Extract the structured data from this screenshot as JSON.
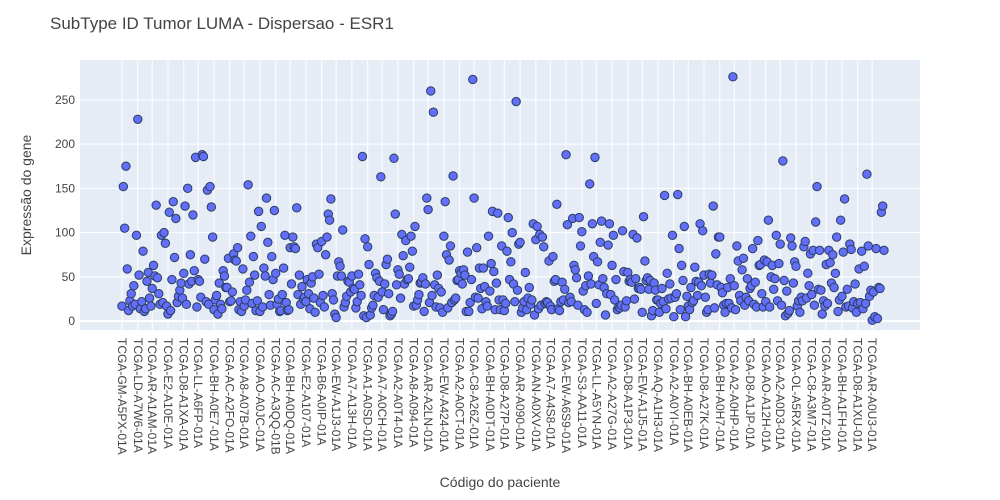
{
  "chart_data": {
    "type": "scatter",
    "title": "SubType ID Tumor LUMA - Dispersao - ESR1",
    "xlabel": "Código do paciente",
    "ylabel": "Expressão do gene",
    "ylim": [
      -10,
      295
    ],
    "yticks": [
      0,
      50,
      100,
      150,
      200,
      250
    ],
    "grid": true,
    "marker_color": "#636efa",
    "marker_edge_color": "#2a3f5f",
    "plot_bg": "#e5ecf6",
    "xtick_labels": [
      "TCGA-GM-A5PX-01A",
      "TCGA-LD-A7W6-01A",
      "TCGA-AR-A1AM-01A",
      "TCGA-E2-A10E-01A",
      "TCGA-D8-A1XA-01A",
      "TCGA-LL-A6FP-01A",
      "TCGA-BH-A0E7-01A",
      "TCGA-AC-A2FO-01A",
      "TCGA-A8-A07B-01A",
      "TCGA-AO-A0JC-01A",
      "TCGA-AC-A3QQ-01B",
      "TCGA-BH-A0DQ-01A",
      "TCGA-E2-A107-01A",
      "TCGA-B6-A0IP-01A",
      "TCGA-EW-A1J3-01A",
      "TCGA-A7-A13H-01A",
      "TCGA-A1-A0SD-01A",
      "TCGA-A7-A0CH-01A",
      "TCGA-A2-A0T4-01A",
      "TCGA-A8-A094-01A",
      "TCGA-AR-A2LN-01A",
      "TCGA-EW-A424-01A",
      "TCGA-A2-A0CT-01A",
      "TCGA-C8-A26Z-01A",
      "TCGA-BH-A0DT-01A",
      "TCGA-D8-A27P-01A",
      "TCGA-AR-A090-01A",
      "TCGA-AN-A0XV-01A",
      "TCGA-A7-A4S8-01A",
      "TCGA-EW-A6S9-01A",
      "TCGA-S3-AA11-01A",
      "TCGA-LL-A5YN-01A",
      "TCGA-A2-A27G-01A",
      "TCGA-D8-A1P3-01A",
      "TCGA-EW-A1J5-01A",
      "TCGA-AQ-A1H3-01A",
      "TCGA-A2-A0YI-01A",
      "TCGA-BH-A0EB-01A",
      "TCGA-D8-A27K-01A",
      "TCGA-BH-A0H7-01A",
      "TCGA-A2-A0HP-01A",
      "TCGA-D8-A1JP-01A",
      "TCGA-AO-A12H-01A",
      "TCGA-A2-A0D3-01A",
      "TCGA-OL-A5RX-01A",
      "TCGA-C8-A3M7-01A",
      "TCGA-AR-A0TZ-01A",
      "TCGA-BH-A1FH-01A",
      "TCGA-D8-A1XU-01A",
      "TCGA-AR-A0U3-01A"
    ],
    "values": [
      17,
      152,
      105,
      175,
      59,
      12,
      23,
      31,
      17,
      40,
      19,
      97,
      228,
      52,
      14,
      22,
      79,
      11,
      14,
      45,
      55,
      26,
      17,
      37,
      63,
      51,
      131,
      49,
      31,
      19,
      97,
      21,
      100,
      88,
      17,
      8,
      123,
      12,
      47,
      135,
      72,
      116,
      21,
      28,
      35,
      43,
      26,
      54,
      130,
      19,
      150,
      42,
      75,
      45,
      120,
      57,
      185,
      16,
      47,
      45,
      27,
      188,
      186,
      70,
      22,
      148,
      19,
      152,
      129,
      95,
      13,
      24,
      29,
      8,
      43,
      19,
      14,
      57,
      51,
      38,
      38,
      71,
      22,
      23,
      33,
      76,
      69,
      68,
      83,
      13,
      22,
      11,
      59,
      17,
      24,
      35,
      154,
      44,
      96,
      20,
      73,
      52,
      12,
      23,
      124,
      11,
      107,
      16,
      60,
      51,
      139,
      89,
      30,
      18,
      73,
      47,
      125,
      54,
      19,
      25,
      11,
      12,
      30,
      60,
      97,
      21,
      12,
      13,
      83,
      42,
      95,
      84,
      82,
      128,
      30,
      52,
      19,
      39,
      25,
      27,
      22,
      47,
      31,
      14,
      43,
      50,
      26,
      10,
      87,
      83,
      53,
      21,
      90,
      29,
      16,
      75,
      95,
      121,
      114,
      138,
      31,
      24,
      8,
      4,
      51,
      67,
      62,
      51,
      103,
      16,
      21,
      28,
      45,
      44,
      33,
      51,
      37,
      36,
      15,
      22,
      53,
      41,
      29,
      186,
      6,
      93,
      4,
      84,
      64,
      7,
      15,
      18,
      29,
      54,
      49,
      27,
      45,
      163,
      33,
      13,
      42,
      64,
      70,
      31,
      6,
      8,
      11,
      184,
      121,
      41,
      58,
      53,
      26,
      98,
      74,
      42,
      91,
      47,
      48,
      61,
      96,
      79,
      17,
      107,
      18,
      24,
      30,
      43,
      44,
      49,
      11,
      42,
      139,
      126,
      21,
      260,
      29,
      236,
      41,
      16,
      52,
      37,
      15,
      33,
      10,
      96,
      135,
      75,
      15,
      69,
      85,
      21,
      164,
      24,
      26,
      46,
      47,
      57,
      54,
      42,
      58,
      52,
      11,
      78,
      11,
      21,
      47,
      273,
      139,
      27,
      83,
      26,
      60,
      37,
      14,
      60,
      39,
      22,
      17,
      96,
      34,
      65,
      124,
      56,
      13,
      43,
      122,
      24,
      13,
      85,
      24,
      12,
      20,
      79,
      117,
      47,
      67,
      100,
      42,
      22,
      248,
      35,
      87,
      89,
      10,
      15,
      22,
      55,
      13,
      26,
      38,
      19,
      24,
      110,
      7,
      92,
      107,
      14,
      98,
      18,
      95,
      84,
      20,
      22,
      21,
      68,
      17,
      13,
      73,
      45,
      47,
      132,
      14,
      12,
      22,
      44,
      24,
      36,
      188,
      109,
      21,
      27,
      22,
      116,
      63,
      58,
      49,
      18,
      117,
      85,
      101,
      34,
      13,
      40,
      10,
      51,
      155,
      42,
      110,
      73,
      185,
      20,
      67,
      41,
      89,
      113,
      48,
      38,
      7,
      31,
      86,
      110,
      30,
      63,
      97,
      24,
      47,
      13,
      16,
      15,
      18,
      102,
      56,
      16,
      23,
      55,
      45,
      47,
      44,
      98,
      25,
      48,
      94,
      37,
      38,
      36,
      10,
      118,
      68,
      46,
      49,
      36,
      46,
      6,
      12,
      43,
      35,
      24,
      24,
      10,
      20,
      37,
      22,
      142,
      14,
      54,
      25,
      42,
      26,
      97,
      5,
      27,
      31,
      143,
      82,
      13,
      63,
      46,
      107,
      5,
      28,
      17,
      13,
      38,
      21,
      23,
      61,
      45,
      29,
      44,
      110,
      40,
      102,
      52,
      27,
      10,
      13,
      53,
      43,
      52,
      130,
      15,
      76,
      41,
      95,
      95,
      38,
      32,
      18,
      10,
      20,
      38,
      20,
      48,
      15,
      276,
      40,
      13,
      85,
      68,
      29,
      23,
      58,
      71,
      18,
      27,
      48,
      23,
      37,
      40,
      82,
      19,
      44,
      16,
      91,
      63,
      64,
      31,
      16,
      69,
      22,
      67,
      114,
      16,
      50,
      63,
      36,
      48,
      97,
      23,
      65,
      87,
      18,
      181,
      46,
      6,
      34,
      9,
      12,
      94,
      85,
      43,
      67,
      62,
      17,
      23,
      10,
      27,
      23,
      84,
      90,
      26,
      54,
      40,
      76,
      30,
      80,
      18,
      112,
      152,
      36,
      80,
      35,
      8,
      23,
      17,
      64,
      20,
      80,
      66,
      43,
      75,
      38,
      54,
      95,
      11,
      24,
      114,
      28,
      78,
      138,
      16,
      36,
      17,
      87,
      81,
      15,
      22,
      42,
      10,
      20,
      59,
      21,
      79,
      14,
      62,
      20,
      166,
      85,
      28,
      35,
      1,
      33,
      5,
      82,
      3,
      38,
      37,
      123,
      130,
      80
    ]
  }
}
